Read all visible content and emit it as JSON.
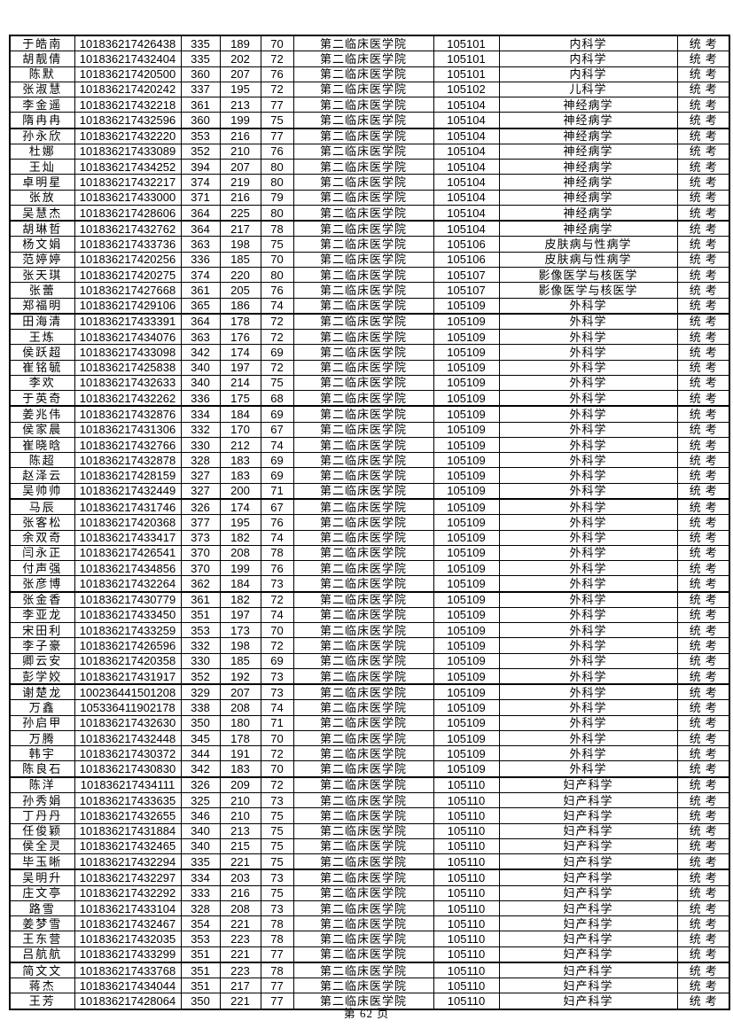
{
  "document": {
    "footer": {
      "page_label": "第 62 页"
    }
  },
  "table": {
    "column_names": [
      "student-name",
      "candidate-id",
      "score-total",
      "score-business",
      "score-comprehensive",
      "college",
      "major-code",
      "major-name",
      "exam-type"
    ],
    "rows": [
      [
        "于皓南",
        "101836217426438",
        "335",
        "189",
        "70",
        "第二临床医学院",
        "105101",
        "内科学",
        "统考"
      ],
      [
        "胡靓倩",
        "101836217432404",
        "335",
        "202",
        "72",
        "第二临床医学院",
        "105101",
        "内科学",
        "统考"
      ],
      [
        "陈默",
        "101836217420500",
        "360",
        "207",
        "76",
        "第二临床医学院",
        "105101",
        "内科学",
        "统考"
      ],
      [
        "张淑慧",
        "101836217420242",
        "337",
        "195",
        "72",
        "第二临床医学院",
        "105102",
        "儿科学",
        "统考"
      ],
      [
        "李金遥",
        "101836217432218",
        "361",
        "213",
        "77",
        "第二临床医学院",
        "105104",
        "神经病学",
        "统考"
      ],
      [
        "隋冉冉",
        "101836217432596",
        "360",
        "199",
        "75",
        "第二临床医学院",
        "105104",
        "神经病学",
        "统考"
      ],
      [
        "孙永欣",
        "101836217432220",
        "353",
        "216",
        "77",
        "第二临床医学院",
        "105104",
        "神经病学",
        "统考"
      ],
      [
        "杜娜",
        "101836217433089",
        "352",
        "210",
        "76",
        "第二临床医学院",
        "105104",
        "神经病学",
        "统考"
      ],
      [
        "王灿",
        "101836217434252",
        "394",
        "207",
        "80",
        "第二临床医学院",
        "105104",
        "神经病学",
        "统考"
      ],
      [
        "卓明星",
        "101836217432217",
        "374",
        "219",
        "80",
        "第二临床医学院",
        "105104",
        "神经病学",
        "统考"
      ],
      [
        "张放",
        "101836217433000",
        "371",
        "216",
        "79",
        "第二临床医学院",
        "105104",
        "神经病学",
        "统考"
      ],
      [
        "吴慧杰",
        "101836217428606",
        "364",
        "225",
        "80",
        "第二临床医学院",
        "105104",
        "神经病学",
        "统考"
      ],
      [
        "胡琳哲",
        "101836217432762",
        "364",
        "217",
        "78",
        "第二临床医学院",
        "105104",
        "神经病学",
        "统考"
      ],
      [
        "杨文娟",
        "101836217433736",
        "363",
        "198",
        "75",
        "第二临床医学院",
        "105106",
        "皮肤病与性病学",
        "统考"
      ],
      [
        "范婷婷",
        "101836217420256",
        "336",
        "185",
        "70",
        "第二临床医学院",
        "105106",
        "皮肤病与性病学",
        "统考"
      ],
      [
        "张天琪",
        "101836217420275",
        "374",
        "220",
        "80",
        "第二临床医学院",
        "105107",
        "影像医学与核医学",
        "统考"
      ],
      [
        "张蕾",
        "101836217427668",
        "361",
        "205",
        "76",
        "第二临床医学院",
        "105107",
        "影像医学与核医学",
        "统考"
      ],
      [
        "郑福明",
        "101836217429106",
        "365",
        "186",
        "74",
        "第二临床医学院",
        "105109",
        "外科学",
        "统考"
      ],
      [
        "田海清",
        "101836217433391",
        "364",
        "178",
        "72",
        "第二临床医学院",
        "105109",
        "外科学",
        "统考"
      ],
      [
        "王炼",
        "101836217434076",
        "363",
        "176",
        "72",
        "第二临床医学院",
        "105109",
        "外科学",
        "统考"
      ],
      [
        "侯跃超",
        "101836217433098",
        "342",
        "174",
        "69",
        "第二临床医学院",
        "105109",
        "外科学",
        "统考"
      ],
      [
        "崔铭毓",
        "101836217425838",
        "340",
        "197",
        "72",
        "第二临床医学院",
        "105109",
        "外科学",
        "统考"
      ],
      [
        "李欢",
        "101836217432633",
        "340",
        "214",
        "75",
        "第二临床医学院",
        "105109",
        "外科学",
        "统考"
      ],
      [
        "于英奇",
        "101836217432262",
        "336",
        "175",
        "68",
        "第二临床医学院",
        "105109",
        "外科学",
        "统考"
      ],
      [
        "姜兆伟",
        "101836217432876",
        "334",
        "184",
        "69",
        "第二临床医学院",
        "105109",
        "外科学",
        "统考"
      ],
      [
        "侯家晨",
        "101836217431306",
        "332",
        "170",
        "67",
        "第二临床医学院",
        "105109",
        "外科学",
        "统考"
      ],
      [
        "崔晓晗",
        "101836217432766",
        "330",
        "212",
        "74",
        "第二临床医学院",
        "105109",
        "外科学",
        "统考"
      ],
      [
        "陈超",
        "101836217432878",
        "328",
        "183",
        "69",
        "第二临床医学院",
        "105109",
        "外科学",
        "统考"
      ],
      [
        "赵泽云",
        "101836217428159",
        "327",
        "183",
        "69",
        "第二临床医学院",
        "105109",
        "外科学",
        "统考"
      ],
      [
        "吴帅帅",
        "101836217432449",
        "327",
        "200",
        "71",
        "第二临床医学院",
        "105109",
        "外科学",
        "统考"
      ],
      [
        "马辰",
        "101836217431746",
        "326",
        "174",
        "67",
        "第二临床医学院",
        "105109",
        "外科学",
        "统考"
      ],
      [
        "张客松",
        "101836217420368",
        "377",
        "195",
        "76",
        "第二临床医学院",
        "105109",
        "外科学",
        "统考"
      ],
      [
        "余双奇",
        "101836217433417",
        "373",
        "182",
        "74",
        "第二临床医学院",
        "105109",
        "外科学",
        "统考"
      ],
      [
        "闫永正",
        "101836217426541",
        "370",
        "208",
        "78",
        "第二临床医学院",
        "105109",
        "外科学",
        "统考"
      ],
      [
        "付声强",
        "101836217434856",
        "370",
        "199",
        "76",
        "第二临床医学院",
        "105109",
        "外科学",
        "统考"
      ],
      [
        "张彦博",
        "101836217432264",
        "362",
        "184",
        "73",
        "第二临床医学院",
        "105109",
        "外科学",
        "统考"
      ],
      [
        "张金香",
        "101836217430779",
        "361",
        "182",
        "72",
        "第二临床医学院",
        "105109",
        "外科学",
        "统考"
      ],
      [
        "李亚龙",
        "101836217433450",
        "351",
        "197",
        "74",
        "第二临床医学院",
        "105109",
        "外科学",
        "统考"
      ],
      [
        "宋田利",
        "101836217433259",
        "353",
        "173",
        "70",
        "第二临床医学院",
        "105109",
        "外科学",
        "统考"
      ],
      [
        "李子豪",
        "101836217426596",
        "332",
        "198",
        "72",
        "第二临床医学院",
        "105109",
        "外科学",
        "统考"
      ],
      [
        "卿云安",
        "101836217420358",
        "330",
        "185",
        "69",
        "第二临床医学院",
        "105109",
        "外科学",
        "统考"
      ],
      [
        "彭学姣",
        "101836217431917",
        "352",
        "192",
        "73",
        "第二临床医学院",
        "105109",
        "外科学",
        "统考"
      ],
      [
        "谢楚龙",
        "100236441501208",
        "329",
        "207",
        "73",
        "第二临床医学院",
        "105109",
        "外科学",
        "统考"
      ],
      [
        "万鑫",
        "105336411902178",
        "338",
        "208",
        "74",
        "第二临床医学院",
        "105109",
        "外科学",
        "统考"
      ],
      [
        "孙启甲",
        "101836217432630",
        "350",
        "180",
        "71",
        "第二临床医学院",
        "105109",
        "外科学",
        "统考"
      ],
      [
        "万腾",
        "101836217432448",
        "345",
        "178",
        "70",
        "第二临床医学院",
        "105109",
        "外科学",
        "统考"
      ],
      [
        "韩宇",
        "101836217430372",
        "344",
        "191",
        "72",
        "第二临床医学院",
        "105109",
        "外科学",
        "统考"
      ],
      [
        "陈良石",
        "101836217430830",
        "342",
        "183",
        "70",
        "第二临床医学院",
        "105109",
        "外科学",
        "统考"
      ],
      [
        "陈洋",
        "101836217434111",
        "326",
        "209",
        "72",
        "第二临床医学院",
        "105110",
        "妇产科学",
        "统考"
      ],
      [
        "孙秀娟",
        "101836217433635",
        "325",
        "210",
        "73",
        "第二临床医学院",
        "105110",
        "妇产科学",
        "统考"
      ],
      [
        "丁丹丹",
        "101836217432655",
        "346",
        "210",
        "75",
        "第二临床医学院",
        "105110",
        "妇产科学",
        "统考"
      ],
      [
        "任俊颖",
        "101836217431884",
        "340",
        "213",
        "75",
        "第二临床医学院",
        "105110",
        "妇产科学",
        "统考"
      ],
      [
        "侯全灵",
        "101836217432465",
        "340",
        "215",
        "75",
        "第二临床医学院",
        "105110",
        "妇产科学",
        "统考"
      ],
      [
        "毕玉晰",
        "101836217432294",
        "335",
        "221",
        "75",
        "第二临床医学院",
        "105110",
        "妇产科学",
        "统考"
      ],
      [
        "吴明升",
        "101836217432297",
        "334",
        "203",
        "73",
        "第二临床医学院",
        "105110",
        "妇产科学",
        "统考"
      ],
      [
        "庄文亭",
        "101836217432292",
        "333",
        "216",
        "75",
        "第二临床医学院",
        "105110",
        "妇产科学",
        "统考"
      ],
      [
        "路雪",
        "101836217433104",
        "328",
        "208",
        "73",
        "第二临床医学院",
        "105110",
        "妇产科学",
        "统考"
      ],
      [
        "姜梦雪",
        "101836217432467",
        "354",
        "221",
        "78",
        "第二临床医学院",
        "105110",
        "妇产科学",
        "统考"
      ],
      [
        "王东营",
        "101836217432035",
        "353",
        "223",
        "78",
        "第二临床医学院",
        "105110",
        "妇产科学",
        "统考"
      ],
      [
        "吕航航",
        "101836217433299",
        "351",
        "221",
        "77",
        "第二临床医学院",
        "105110",
        "妇产科学",
        "统考"
      ],
      [
        "简文文",
        "101836217433768",
        "351",
        "223",
        "78",
        "第二临床医学院",
        "105110",
        "妇产科学",
        "统考"
      ],
      [
        "蒋杰",
        "101836217434044",
        "351",
        "217",
        "77",
        "第二临床医学院",
        "105110",
        "妇产科学",
        "统考"
      ],
      [
        "王芳",
        "101836217428064",
        "350",
        "221",
        "77",
        "第二临床医学院",
        "105110",
        "妇产科学",
        "统考"
      ]
    ]
  }
}
